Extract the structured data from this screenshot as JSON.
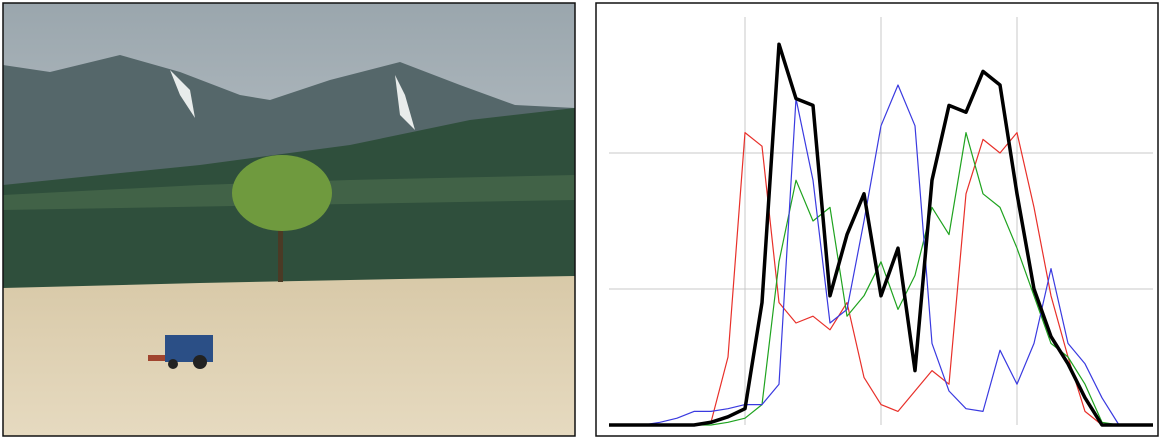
{
  "chart_data": {
    "type": "line",
    "x": [
      0,
      8,
      16,
      24,
      32,
      40,
      48,
      56,
      64,
      72,
      80,
      88,
      96,
      104,
      112,
      120,
      128,
      136,
      144,
      152,
      160,
      168,
      176,
      184,
      192,
      200,
      208,
      216,
      224,
      232,
      240,
      248,
      256
    ],
    "xlim": [
      0,
      256
    ],
    "ylim": [
      0,
      3
    ],
    "xticks": [
      64,
      128,
      192
    ],
    "yticks": [
      1,
      2
    ],
    "grid": true,
    "series": [
      {
        "color": "#e8302a",
        "width": 1.2,
        "values": [
          0,
          0,
          0,
          0,
          0,
          0,
          0.02,
          0.5,
          2.15,
          2.05,
          0.9,
          0.75,
          0.8,
          0.7,
          0.9,
          0.35,
          0.15,
          0.1,
          0.25,
          0.4,
          0.3,
          1.7,
          2.1,
          2.0,
          2.15,
          1.6,
          0.95,
          0.5,
          0.1,
          0,
          0,
          0,
          0
        ]
      },
      {
        "color": "#1fa31f",
        "width": 1.2,
        "values": [
          0,
          0,
          0,
          0,
          0,
          0,
          0,
          0.02,
          0.05,
          0.15,
          1.2,
          1.8,
          1.5,
          1.6,
          0.8,
          0.95,
          1.2,
          0.85,
          1.1,
          1.6,
          1.4,
          2.15,
          1.7,
          1.6,
          1.3,
          0.95,
          0.6,
          0.5,
          0.3,
          0.02,
          0,
          0,
          0
        ]
      },
      {
        "color": "#3a3ae0",
        "width": 1.2,
        "values": [
          0,
          0,
          0,
          0.02,
          0.05,
          0.1,
          0.1,
          0.12,
          0.15,
          0.15,
          0.3,
          2.4,
          1.8,
          0.75,
          0.85,
          1.5,
          2.2,
          2.5,
          2.2,
          0.6,
          0.25,
          0.12,
          0.1,
          0.55,
          0.3,
          0.6,
          1.15,
          0.6,
          0.45,
          0.2,
          0,
          0,
          0
        ]
      },
      {
        "color": "#000000",
        "width": 3.5,
        "values": [
          0,
          0,
          0,
          0,
          0,
          0,
          0.02,
          0.06,
          0.12,
          0.9,
          2.8,
          2.4,
          2.35,
          0.95,
          1.4,
          1.7,
          0.95,
          1.3,
          0.4,
          1.8,
          2.35,
          2.3,
          2.6,
          2.5,
          1.7,
          1.0,
          0.65,
          0.45,
          0.2,
          0,
          0,
          0,
          0
        ]
      }
    ]
  }
}
